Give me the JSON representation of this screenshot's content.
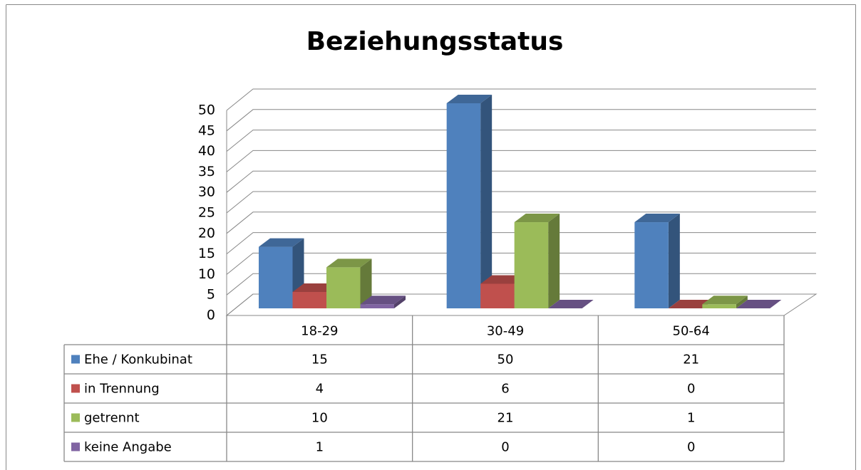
{
  "chart_data": {
    "type": "bar3d",
    "title": "Beziehungsstatus",
    "categories": [
      "18-29",
      "30-49",
      "50-64"
    ],
    "series": [
      {
        "name": "Ehe / Konkubinat",
        "color": "#4f81bd",
        "values": [
          15,
          50,
          21
        ]
      },
      {
        "name": "in Trennung",
        "color": "#c0504d",
        "values": [
          4,
          6,
          0
        ]
      },
      {
        "name": "getrennt",
        "color": "#9bbb59",
        "values": [
          10,
          21,
          1
        ]
      },
      {
        "name": "keine Angabe",
        "color": "#8064a2",
        "values": [
          1,
          0,
          0
        ]
      }
    ],
    "ylim": [
      0,
      50
    ],
    "yticks": [
      0,
      5,
      10,
      15,
      20,
      25,
      30,
      35,
      40,
      45,
      50
    ],
    "grid": true,
    "data_table": true
  }
}
